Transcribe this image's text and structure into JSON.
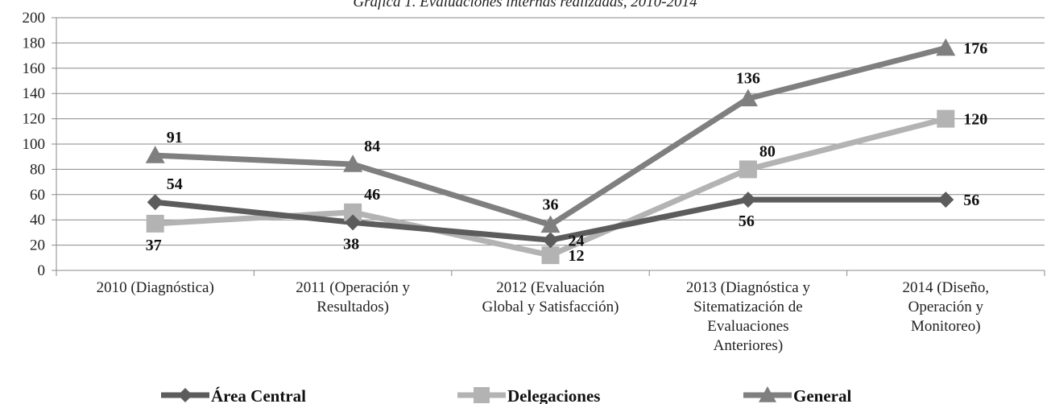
{
  "chart_data": {
    "type": "line",
    "title": "Gráfica 1. Evaluaciones internas realizadas, 2010-2014",
    "categories": [
      [
        "2010 (Diagnóstica)"
      ],
      [
        "2011 (Operación y",
        "Resultados)"
      ],
      [
        "2012 (Evaluación",
        "Global y Satisfacción)"
      ],
      [
        "2013 (Diagnóstica y",
        "Sitematización de",
        "Evaluaciones",
        "Anteriores)"
      ],
      [
        "2014 (Diseño,",
        "Operación y",
        "Monitoreo)"
      ]
    ],
    "series": [
      {
        "name": "Área Central",
        "values": [
          54,
          38,
          24,
          56,
          56
        ],
        "color": "#5c5c5c",
        "marker": "diamond",
        "label_pos": [
          "above-right",
          "below",
          "right",
          "below",
          "right"
        ]
      },
      {
        "name": "Delegaciones",
        "values": [
          37,
          46,
          12,
          80,
          120
        ],
        "color": "#b3b3b3",
        "marker": "square",
        "label_pos": [
          "below",
          "above-right",
          "right",
          "above-right",
          "right"
        ]
      },
      {
        "name": "General",
        "values": [
          91,
          84,
          36,
          136,
          176
        ],
        "color": "#7f7f7f",
        "marker": "triangle",
        "label_pos": [
          "above-right",
          "above-right",
          "above",
          "above",
          "right"
        ]
      }
    ],
    "yticks": [
      0,
      20,
      40,
      60,
      80,
      100,
      120,
      140,
      160,
      180,
      200
    ],
    "ylim": [
      0,
      200
    ],
    "grid": true,
    "legend": "bottom"
  }
}
